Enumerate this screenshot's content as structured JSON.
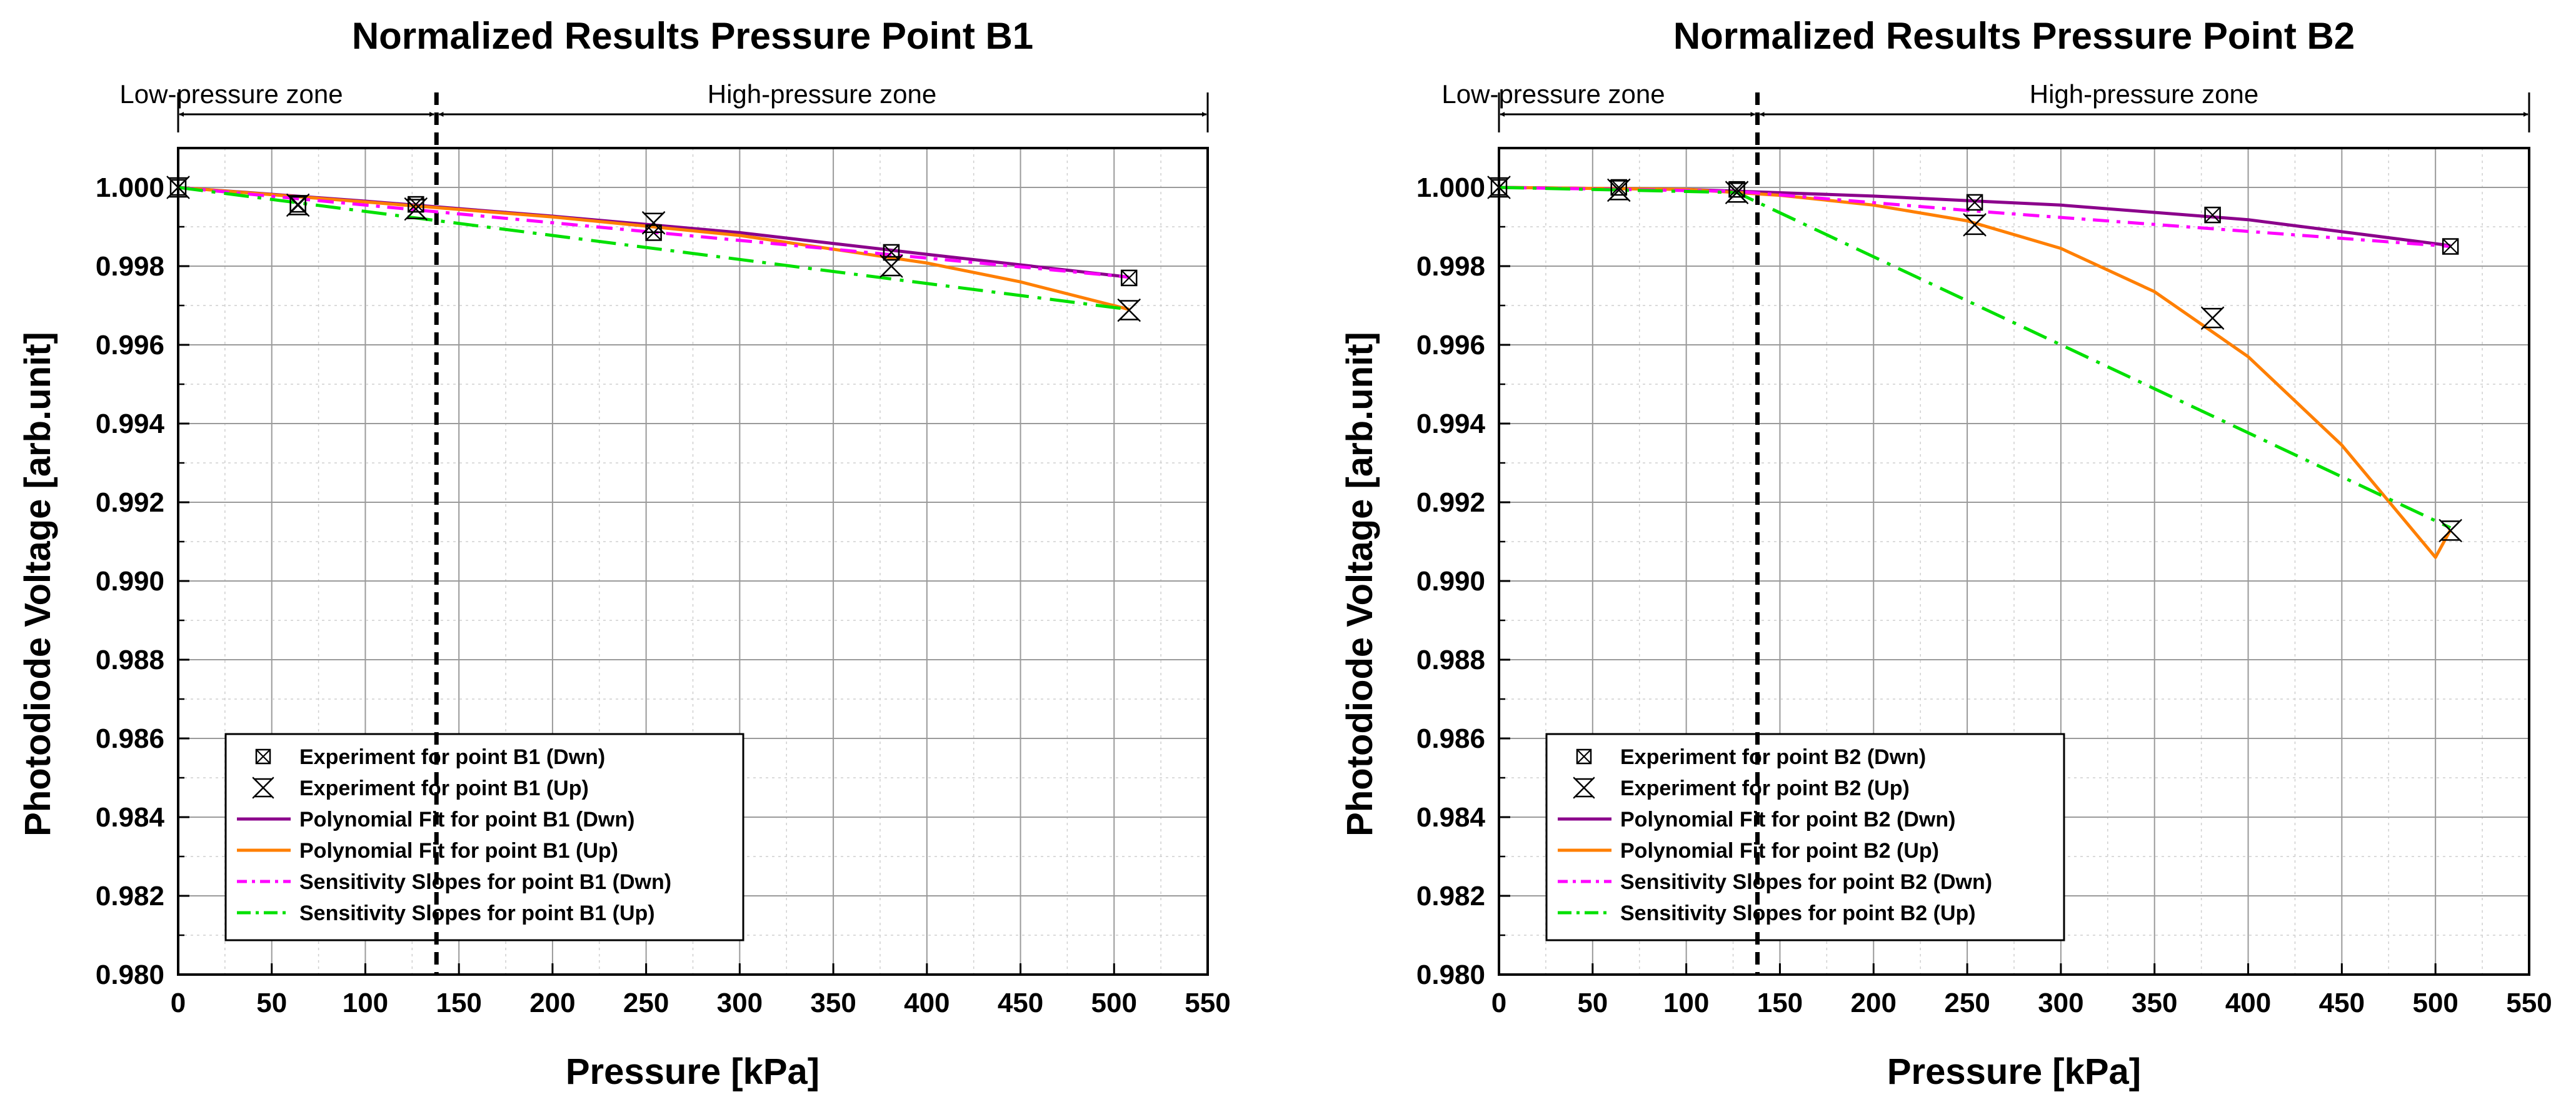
{
  "chart_data": [
    {
      "type": "line",
      "title": "Normalized Results Pressure Point B1",
      "xlabel": "Pressure [kPa]",
      "ylabel": "Photodiode Voltage [arb.unit]",
      "xlim": [
        0,
        550
      ],
      "ylim": [
        0.98,
        1.001
      ],
      "xticks": [
        0,
        50,
        100,
        150,
        200,
        250,
        300,
        350,
        400,
        450,
        500,
        550
      ],
      "xtick_labels": [
        "0",
        "50",
        "100",
        "150",
        "200",
        "250",
        "300",
        "350",
        "400",
        "450",
        "500",
        "550"
      ],
      "yticks": [
        0.98,
        0.982,
        0.984,
        0.986,
        0.988,
        0.99,
        0.992,
        0.994,
        0.996,
        0.998,
        1.0
      ],
      "ytick_labels": [
        "0.980",
        "0.982",
        "0.984",
        "0.986",
        "0.988",
        "0.990",
        "0.992",
        "0.994",
        "0.996",
        "0.998",
        "1.000"
      ],
      "grid": true,
      "zones": {
        "boundary": 138,
        "low_label": "Low-pressure zone",
        "high_label": "High-pressure zone"
      },
      "legend_position": "bottom-left",
      "series": [
        {
          "name": "Experiment for point B1 (Dwn)",
          "kind": "marker",
          "marker": "boxed-x",
          "color": "#000000",
          "x": [
            0,
            64,
            127,
            254,
            381,
            508
          ],
          "y": [
            1.0,
            0.99957,
            0.99957,
            0.99885,
            0.99835,
            0.9977
          ]
        },
        {
          "name": "Experiment for point B1 (Up)",
          "kind": "marker",
          "marker": "hourglass-x",
          "color": "#000000",
          "x": [
            0,
            64,
            127,
            254,
            381,
            508
          ],
          "y": [
            1.0,
            0.99955,
            0.99945,
            0.9991,
            0.998,
            0.99688
          ]
        },
        {
          "name": "Polynomial Fit for point B1 (Dwn)",
          "kind": "line",
          "dash": "solid",
          "color": "#8B008B",
          "x": [
            0,
            100,
            200,
            300,
            400,
            508
          ],
          "y": [
            1.0,
            0.99965,
            0.99927,
            0.99885,
            0.9983,
            0.99772
          ]
        },
        {
          "name": "Polynomial Fit for point B1 (Up)",
          "kind": "line",
          "dash": "solid",
          "color": "#FF7F00",
          "x": [
            0,
            100,
            200,
            300,
            400,
            450,
            508
          ],
          "y": [
            1.0,
            0.99963,
            0.99925,
            0.99878,
            0.99808,
            0.9976,
            0.9969
          ]
        },
        {
          "name": "Sensitivity Slopes for point B1 (Dwn)",
          "kind": "line",
          "dash": "dashdot2",
          "color": "#FF00FF",
          "x": [
            0,
            508
          ],
          "y": [
            1.0,
            0.99772
          ]
        },
        {
          "name": "Sensitivity Slopes for point B1 (Up)",
          "kind": "line",
          "dash": "dashdot",
          "color": "#00E000",
          "x": [
            0,
            508
          ],
          "y": [
            1.0,
            0.9969
          ]
        }
      ]
    },
    {
      "type": "line",
      "title": "Normalized Results Pressure Point B2",
      "xlabel": "Pressure [kPa]",
      "ylabel": "Photodiode Voltage [arb.unit]",
      "xlim": [
        0,
        550
      ],
      "ylim": [
        0.98,
        1.001
      ],
      "xticks": [
        0,
        50,
        100,
        150,
        200,
        250,
        300,
        350,
        400,
        450,
        500,
        550
      ],
      "xtick_labels": [
        "0",
        "50",
        "100",
        "150",
        "200",
        "250",
        "300",
        "350",
        "400",
        "450",
        "500",
        "550"
      ],
      "yticks": [
        0.98,
        0.982,
        0.984,
        0.986,
        0.988,
        0.99,
        0.992,
        0.994,
        0.996,
        0.998,
        1.0
      ],
      "ytick_labels": [
        "0.980",
        "0.982",
        "0.984",
        "0.986",
        "0.988",
        "0.990",
        "0.992",
        "0.994",
        "0.996",
        "0.998",
        "1.000"
      ],
      "grid": true,
      "zones": {
        "boundary": 138,
        "low_label": "Low-pressure zone",
        "high_label": "High-pressure zone"
      },
      "legend_position": "bottom-left",
      "series": [
        {
          "name": "Experiment for point B2 (Dwn)",
          "kind": "marker",
          "marker": "boxed-x",
          "color": "#000000",
          "x": [
            0,
            64,
            127,
            254,
            381,
            508
          ],
          "y": [
            1.0,
            1.0,
            0.99995,
            0.99962,
            0.9993,
            0.9985
          ]
        },
        {
          "name": "Experiment for point B2 (Up)",
          "kind": "marker",
          "marker": "hourglass-x",
          "color": "#000000",
          "x": [
            0,
            64,
            127,
            254,
            381,
            508
          ],
          "y": [
            1.0,
            0.99993,
            0.99987,
            0.99905,
            0.99668,
            0.99128
          ]
        },
        {
          "name": "Polynomial Fit for point B2 (Dwn)",
          "kind": "line",
          "dash": "solid",
          "color": "#8B008B",
          "x": [
            0,
            100,
            200,
            300,
            400,
            508
          ],
          "y": [
            1.0,
            0.99995,
            0.99978,
            0.99955,
            0.99918,
            0.99852
          ]
        },
        {
          "name": "Polynomial Fit for point B2 (Up)",
          "kind": "line",
          "dash": "solid",
          "color": "#FF7F00",
          "x": [
            0,
            100,
            150,
            200,
            250,
            300,
            350,
            400,
            450,
            500,
            508
          ],
          "y": [
            1.0,
            0.99995,
            0.9998,
            0.99955,
            0.99915,
            0.99845,
            0.99735,
            0.9957,
            0.99345,
            0.9906,
            0.9913
          ]
        },
        {
          "name": "Sensitivity Slopes for point B2 (Dwn)",
          "kind": "line",
          "dash": "dashdot2",
          "color": "#FF00FF",
          "x": [
            0,
            127,
            254,
            508
          ],
          "y": [
            1.0,
            0.9999,
            0.9994,
            0.9985
          ]
        },
        {
          "name": "Sensitivity Slopes for point B2 (Up)",
          "kind": "line",
          "dash": "dashdot",
          "color": "#00E000",
          "x": [
            0,
            127,
            508
          ],
          "y": [
            1.0,
            0.99987,
            0.99135
          ]
        }
      ]
    }
  ]
}
